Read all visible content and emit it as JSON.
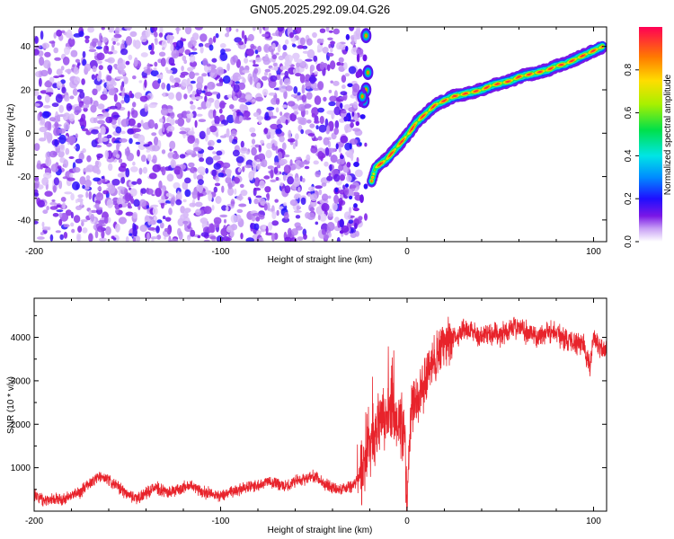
{
  "chart_data": [
    {
      "type": "heatmap",
      "title": "GN05.2025.292.09.04.G26",
      "xlabel": "Height of straight line (km)",
      "ylabel": "Frequency (Hz)",
      "xlim": [
        -200,
        107
      ],
      "ylim": [
        -50,
        49
      ],
      "xticks": [
        -200,
        -100,
        0,
        100
      ],
      "xtick_labels": [
        "-200",
        "-100",
        "0",
        "100"
      ],
      "yticks": [
        -40,
        -20,
        0,
        20,
        40
      ],
      "ytick_labels": [
        "-40",
        "-20",
        "0",
        "20",
        "40"
      ],
      "colorbar": {
        "label": "Normalized spectral amplitude",
        "range": [
          0,
          1
        ],
        "ticks": [
          0,
          0.2,
          0.4,
          0.6,
          0.8
        ],
        "tick_labels": [
          "0.0",
          "0.2",
          "0.4",
          "0.6",
          "0.8"
        ]
      },
      "ridge": {
        "x": [
          -19,
          -17,
          -14,
          -11,
          -8,
          -5,
          -2,
          1,
          5,
          10,
          15,
          20,
          25,
          30,
          35,
          40,
          45,
          50,
          55,
          60,
          65,
          70,
          75,
          80,
          85,
          90,
          95,
          100,
          105
        ],
        "y": [
          -22,
          -16,
          -14,
          -12,
          -9,
          -6,
          -3,
          0,
          5,
          9,
          13,
          15,
          17,
          18,
          19,
          20,
          22,
          23,
          24,
          26,
          27,
          28,
          29,
          31,
          32,
          34,
          36,
          38,
          40
        ]
      },
      "left_end_feature": {
        "x": [
          -22,
          -21,
          -22,
          -23,
          -24
        ],
        "y": [
          45,
          28,
          20,
          15,
          17
        ]
      },
      "noise_region": {
        "x": [
          -200,
          -25
        ],
        "y": [
          -50,
          49
        ]
      }
    },
    {
      "type": "line",
      "title": "",
      "xlabel": "Height of straight line (km)",
      "ylabel": "SNR (10 * v/v)",
      "xlim": [
        -200,
        107
      ],
      "ylim": [
        0,
        4900
      ],
      "xticks": [
        -200,
        -100,
        0,
        100
      ],
      "xtick_labels": [
        "-200",
        "-100",
        "0",
        "100"
      ],
      "yticks": [
        1000,
        2000,
        3000,
        4000
      ],
      "ytick_labels": [
        "1000",
        "2000",
        "3000",
        "4000"
      ],
      "series": [
        {
          "name": "SNR",
          "color": "#e8232b",
          "x": [
            -200,
            -195,
            -190,
            -185,
            -180,
            -175,
            -170,
            -165,
            -160,
            -155,
            -150,
            -145,
            -140,
            -135,
            -130,
            -125,
            -120,
            -115,
            -110,
            -105,
            -100,
            -95,
            -90,
            -85,
            -80,
            -75,
            -70,
            -65,
            -60,
            -55,
            -50,
            -45,
            -40,
            -35,
            -30,
            -27,
            -25,
            -22,
            -20,
            -18,
            -15,
            -12,
            -10,
            -8,
            -5,
            -3,
            -1,
            0,
            2,
            5,
            8,
            10,
            12,
            15,
            18,
            20,
            22,
            25,
            28,
            30,
            35,
            40,
            45,
            50,
            55,
            60,
            65,
            70,
            75,
            80,
            85,
            90,
            95,
            98,
            100,
            103,
            107
          ],
          "y": [
            400,
            250,
            300,
            250,
            350,
            450,
            650,
            800,
            700,
            550,
            400,
            300,
            400,
            550,
            450,
            450,
            550,
            600,
            450,
            400,
            350,
            450,
            500,
            550,
            600,
            700,
            650,
            550,
            700,
            750,
            800,
            650,
            550,
            500,
            550,
            700,
            900,
            1200,
            1500,
            1700,
            2000,
            2200,
            2400,
            2300,
            2100,
            1900,
            1400,
            300,
            2200,
            2600,
            2800,
            3000,
            3300,
            3500,
            3700,
            3800,
            3900,
            4000,
            4100,
            4200,
            4150,
            4000,
            4100,
            4050,
            4200,
            4250,
            4100,
            4000,
            4150,
            4100,
            3950,
            3900,
            3800,
            3300,
            4000,
            3800,
            3700
          ]
        }
      ]
    }
  ]
}
